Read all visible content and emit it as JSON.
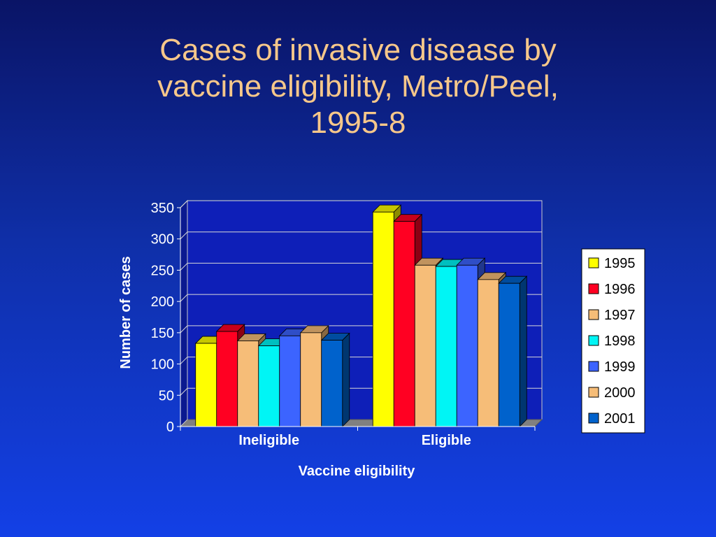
{
  "slide": {
    "title_lines": [
      "Cases of invasive disease by",
      "vaccine eligibility, Metro/Peel,",
      "1995-8"
    ]
  },
  "chart_data": {
    "type": "bar",
    "title": "Cases of invasive disease by vaccine eligibility, Metro/Peel, 1995-8",
    "xlabel": "Vaccine eligibility",
    "ylabel": "Number of cases",
    "ylim": [
      0,
      350
    ],
    "yticks": [
      0,
      50,
      100,
      150,
      200,
      250,
      300,
      350
    ],
    "grid": true,
    "legend_position": "right",
    "categories": [
      "Ineligible",
      "Eligible"
    ],
    "series": [
      {
        "name": "1995",
        "color": "#ffff00",
        "values": [
          133,
          343
        ]
      },
      {
        "name": "1996",
        "color": "#ff0022",
        "values": [
          152,
          328
        ]
      },
      {
        "name": "1997",
        "color": "#f6bd78",
        "values": [
          137,
          258
        ]
      },
      {
        "name": "1998",
        "color": "#00f5f5",
        "values": [
          129,
          256
        ]
      },
      {
        "name": "1999",
        "color": "#3c64ff",
        "values": [
          145,
          258
        ]
      },
      {
        "name": "2000",
        "color": "#f6bd78",
        "values": [
          150,
          235
        ]
      },
      {
        "name": "2001",
        "color": "#0062cc",
        "values": [
          138,
          229
        ]
      }
    ]
  }
}
